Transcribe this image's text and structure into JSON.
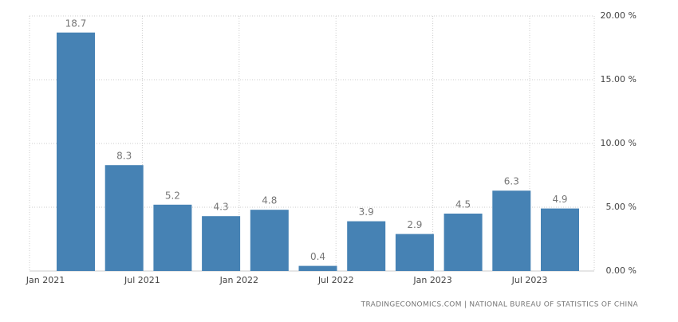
{
  "chart_data": {
    "type": "bar",
    "categories": [
      null,
      null,
      null,
      null,
      null,
      null,
      null,
      null,
      null,
      null,
      null
    ],
    "values": [
      18.7,
      8.3,
      5.2,
      4.3,
      4.8,
      0.4,
      3.9,
      2.9,
      4.5,
      6.3,
      4.9
    ],
    "color": "#4682b4",
    "xtick_labels": [
      "Jan 2021",
      "Jul 2021",
      "Jan 2022",
      "Jul 2022",
      "Jan 2023",
      "Jul 2023"
    ],
    "ylim": [
      0,
      20
    ],
    "yticks": [
      {
        "value": 0,
        "label": "0.00 %"
      },
      {
        "value": 5,
        "label": "5.00 %"
      },
      {
        "value": 10,
        "label": "10.00 %"
      },
      {
        "value": 15,
        "label": "15.00 %"
      },
      {
        "value": 20,
        "label": "20.00 %"
      }
    ],
    "grid": true,
    "source": "TRADINGECONOMICS.COM  |  NATIONAL BUREAU OF STATISTICS OF CHINA"
  }
}
